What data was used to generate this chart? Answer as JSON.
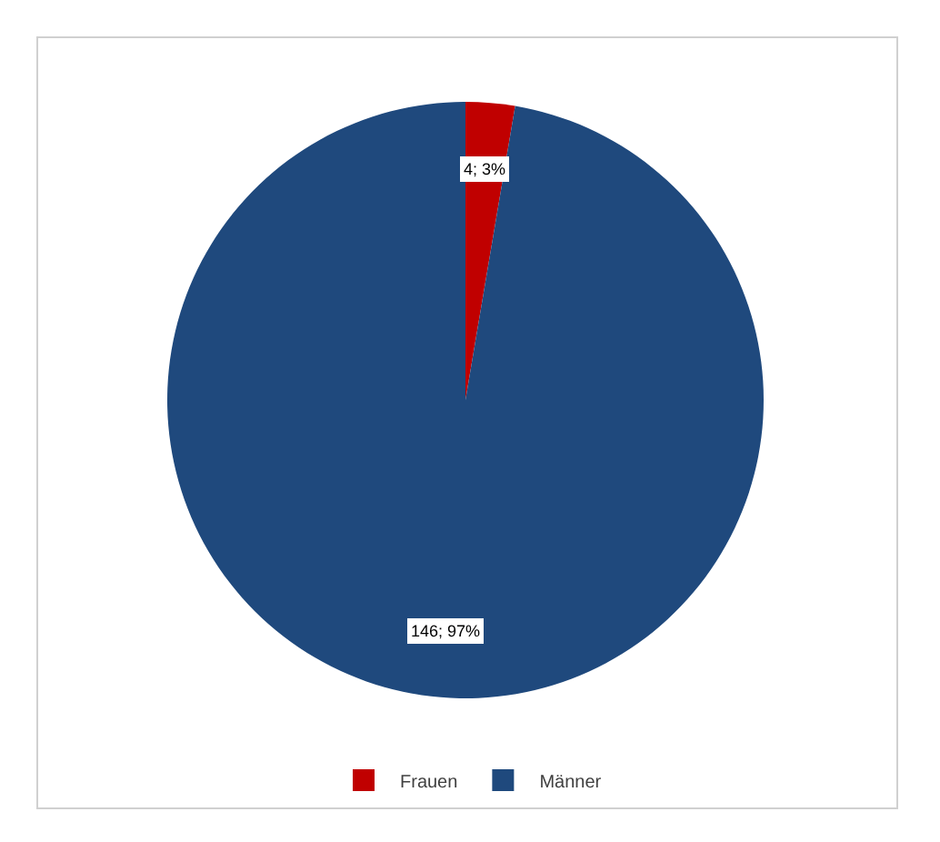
{
  "chart_data": {
    "type": "pie",
    "categories": [
      "Frauen",
      "Männer"
    ],
    "values": [
      4,
      146
    ],
    "colors": [
      "#c00000",
      "#1f497d"
    ],
    "value_labels": [
      "4; 3%",
      "146; 97%"
    ],
    "legend": "bottom"
  }
}
